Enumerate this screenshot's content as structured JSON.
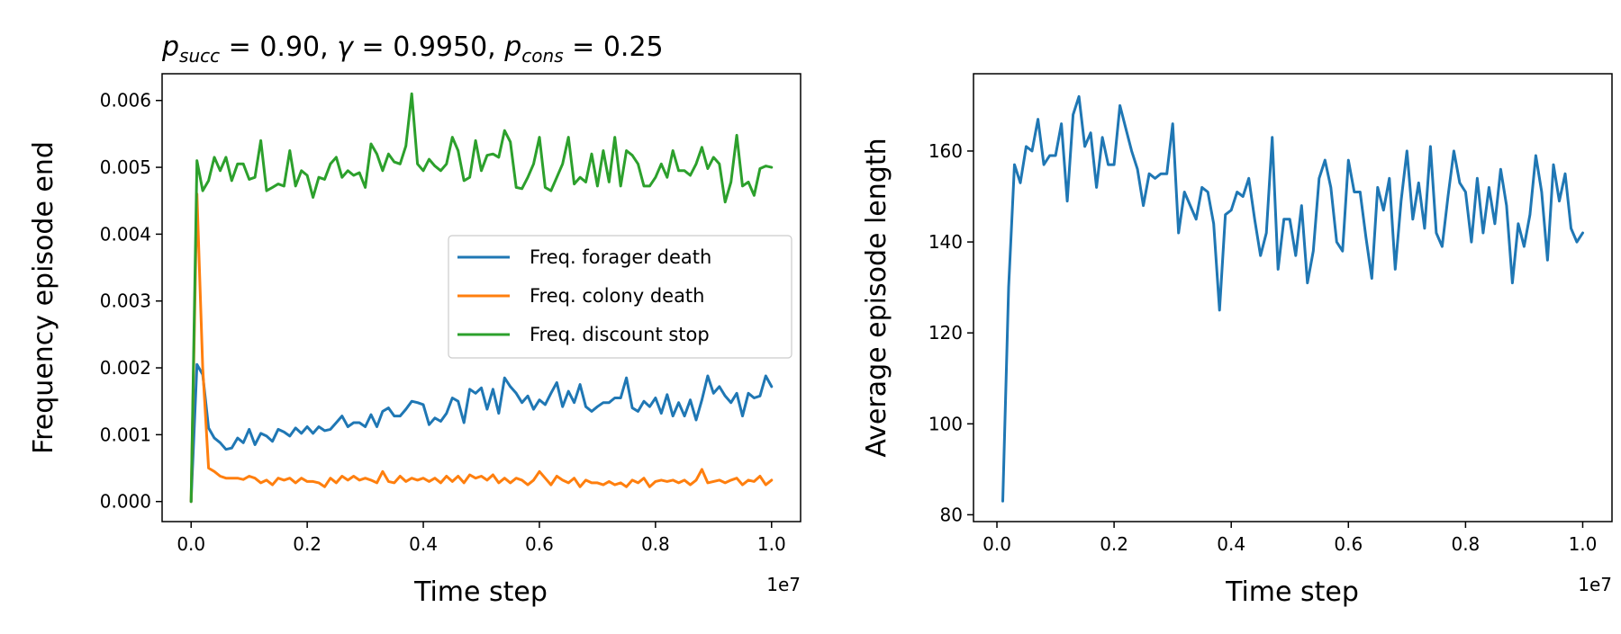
{
  "chart_data": [
    {
      "type": "line",
      "title": "p_succ = 0.90, γ = 0.9950, p_cons = 0.25",
      "title_parts": {
        "p": "p",
        "succ_sub": "succ",
        "eq1": " = 0.90, ",
        "gamma": "γ",
        "eq2": " = 0.9950, ",
        "p2": "p",
        "cons_sub": "cons",
        "eq3": " = 0.25"
      },
      "xlabel": "Time step",
      "ylabel": "Frequency episode end",
      "x_offset_label": "1e7",
      "xlim": [
        -0.05,
        1.05
      ],
      "ylim": [
        -0.0003,
        0.0064
      ],
      "xticks": [
        0.0,
        0.2,
        0.4,
        0.6,
        0.8,
        1.0
      ],
      "xtick_labels": [
        "0.0",
        "0.2",
        "0.4",
        "0.6",
        "0.8",
        "1.0"
      ],
      "yticks": [
        0.0,
        0.001,
        0.002,
        0.003,
        0.004,
        0.005,
        0.006
      ],
      "ytick_labels": [
        "0.000",
        "0.001",
        "0.002",
        "0.003",
        "0.004",
        "0.005",
        "0.006"
      ],
      "legend_placement": "center-right",
      "grid": false,
      "series": [
        {
          "name": "Freq. forager death",
          "color": "#1f77b4",
          "x": [
            0.0,
            0.01,
            0.02,
            0.03,
            0.04,
            0.05,
            0.06,
            0.07,
            0.08,
            0.09,
            0.1,
            0.11,
            0.12,
            0.13,
            0.14,
            0.15,
            0.16,
            0.17,
            0.18,
            0.19,
            0.2,
            0.21,
            0.22,
            0.23,
            0.24,
            0.25,
            0.26,
            0.27,
            0.28,
            0.29,
            0.3,
            0.31,
            0.32,
            0.33,
            0.34,
            0.35,
            0.36,
            0.37,
            0.38,
            0.39,
            0.4,
            0.41,
            0.42,
            0.43,
            0.44,
            0.45,
            0.46,
            0.47,
            0.48,
            0.49,
            0.5,
            0.51,
            0.52,
            0.53,
            0.54,
            0.55,
            0.56,
            0.57,
            0.58,
            0.59,
            0.6,
            0.61,
            0.62,
            0.63,
            0.64,
            0.65,
            0.66,
            0.67,
            0.68,
            0.69,
            0.7,
            0.71,
            0.72,
            0.73,
            0.74,
            0.75,
            0.76,
            0.77,
            0.78,
            0.79,
            0.8,
            0.81,
            0.82,
            0.83,
            0.84,
            0.85,
            0.86,
            0.87,
            0.88,
            0.89,
            0.9,
            0.91,
            0.92,
            0.93,
            0.94,
            0.95,
            0.96,
            0.97,
            0.98,
            0.99,
            1.0
          ],
          "values": [
            0.0,
            0.00205,
            0.0019,
            0.0011,
            0.00095,
            0.00088,
            0.00078,
            0.0008,
            0.00095,
            0.00088,
            0.00108,
            0.00085,
            0.00102,
            0.00098,
            0.0009,
            0.00108,
            0.00104,
            0.00098,
            0.0011,
            0.00102,
            0.00112,
            0.00102,
            0.00112,
            0.00106,
            0.00108,
            0.00118,
            0.00128,
            0.00112,
            0.00118,
            0.00118,
            0.00112,
            0.0013,
            0.00112,
            0.00135,
            0.0014,
            0.00128,
            0.00128,
            0.00138,
            0.0015,
            0.00148,
            0.00145,
            0.00115,
            0.00125,
            0.0012,
            0.00132,
            0.00155,
            0.0015,
            0.00118,
            0.00168,
            0.00162,
            0.0017,
            0.00138,
            0.00168,
            0.00132,
            0.00185,
            0.00172,
            0.00162,
            0.00148,
            0.00158,
            0.00138,
            0.00152,
            0.00145,
            0.00162,
            0.00178,
            0.00142,
            0.00165,
            0.00148,
            0.00175,
            0.00142,
            0.00135,
            0.00142,
            0.00148,
            0.00148,
            0.00155,
            0.00155,
            0.00185,
            0.0014,
            0.00135,
            0.0015,
            0.00142,
            0.00155,
            0.00132,
            0.0016,
            0.00128,
            0.00148,
            0.00128,
            0.00152,
            0.00122,
            0.00152,
            0.00188,
            0.00162,
            0.00172,
            0.00158,
            0.00148,
            0.00162,
            0.00128,
            0.00162,
            0.00155,
            0.00158,
            0.00188,
            0.00172
          ]
        },
        {
          "name": "Freq. colony death",
          "color": "#ff7f0e",
          "x": [
            0.0,
            0.01,
            0.02,
            0.03,
            0.04,
            0.05,
            0.06,
            0.07,
            0.08,
            0.09,
            0.1,
            0.11,
            0.12,
            0.13,
            0.14,
            0.15,
            0.16,
            0.17,
            0.18,
            0.19,
            0.2,
            0.21,
            0.22,
            0.23,
            0.24,
            0.25,
            0.26,
            0.27,
            0.28,
            0.29,
            0.3,
            0.31,
            0.32,
            0.33,
            0.34,
            0.35,
            0.36,
            0.37,
            0.38,
            0.39,
            0.4,
            0.41,
            0.42,
            0.43,
            0.44,
            0.45,
            0.46,
            0.47,
            0.48,
            0.49,
            0.5,
            0.51,
            0.52,
            0.53,
            0.54,
            0.55,
            0.56,
            0.57,
            0.58,
            0.59,
            0.6,
            0.61,
            0.62,
            0.63,
            0.64,
            0.65,
            0.66,
            0.67,
            0.68,
            0.69,
            0.7,
            0.71,
            0.72,
            0.73,
            0.74,
            0.75,
            0.76,
            0.77,
            0.78,
            0.79,
            0.8,
            0.81,
            0.82,
            0.83,
            0.84,
            0.85,
            0.86,
            0.87,
            0.88,
            0.89,
            0.9,
            0.91,
            0.92,
            0.93,
            0.94,
            0.95,
            0.96,
            0.97,
            0.98,
            0.99,
            1.0
          ],
          "values": [
            0.0,
            0.0046,
            0.002,
            0.0005,
            0.00045,
            0.00038,
            0.00035,
            0.00035,
            0.00035,
            0.00033,
            0.00038,
            0.00035,
            0.00028,
            0.00032,
            0.00025,
            0.00035,
            0.00032,
            0.00035,
            0.00028,
            0.00035,
            0.0003,
            0.0003,
            0.00028,
            0.00022,
            0.00035,
            0.00028,
            0.00038,
            0.00032,
            0.00038,
            0.00032,
            0.00035,
            0.00032,
            0.00028,
            0.00045,
            0.0003,
            0.00028,
            0.00038,
            0.0003,
            0.00035,
            0.00032,
            0.00035,
            0.0003,
            0.00035,
            0.00028,
            0.00038,
            0.0003,
            0.00038,
            0.00028,
            0.0004,
            0.00035,
            0.00038,
            0.00032,
            0.0004,
            0.00028,
            0.00035,
            0.00028,
            0.00035,
            0.00032,
            0.00025,
            0.00032,
            0.00045,
            0.00035,
            0.00025,
            0.00038,
            0.00032,
            0.00028,
            0.00035,
            0.00022,
            0.00032,
            0.00028,
            0.00028,
            0.00025,
            0.0003,
            0.00025,
            0.00028,
            0.00022,
            0.00032,
            0.00028,
            0.00035,
            0.00022,
            0.0003,
            0.00032,
            0.0003,
            0.00032,
            0.00028,
            0.00032,
            0.00025,
            0.00032,
            0.00048,
            0.00028,
            0.0003,
            0.00032,
            0.00028,
            0.00032,
            0.00035,
            0.00025,
            0.00032,
            0.0003,
            0.00038,
            0.00025,
            0.00032
          ]
        },
        {
          "name": "Freq. discount stop",
          "color": "#2ca02c",
          "x": [
            0.0,
            0.01,
            0.02,
            0.03,
            0.04,
            0.05,
            0.06,
            0.07,
            0.08,
            0.09,
            0.1,
            0.11,
            0.12,
            0.13,
            0.14,
            0.15,
            0.16,
            0.17,
            0.18,
            0.19,
            0.2,
            0.21,
            0.22,
            0.23,
            0.24,
            0.25,
            0.26,
            0.27,
            0.28,
            0.29,
            0.3,
            0.31,
            0.32,
            0.33,
            0.34,
            0.35,
            0.36,
            0.37,
            0.38,
            0.39,
            0.4,
            0.41,
            0.42,
            0.43,
            0.44,
            0.45,
            0.46,
            0.47,
            0.48,
            0.49,
            0.5,
            0.51,
            0.52,
            0.53,
            0.54,
            0.55,
            0.56,
            0.57,
            0.58,
            0.59,
            0.6,
            0.61,
            0.62,
            0.63,
            0.64,
            0.65,
            0.66,
            0.67,
            0.68,
            0.69,
            0.7,
            0.71,
            0.72,
            0.73,
            0.74,
            0.75,
            0.76,
            0.77,
            0.78,
            0.79,
            0.8,
            0.81,
            0.82,
            0.83,
            0.84,
            0.85,
            0.86,
            0.87,
            0.88,
            0.89,
            0.9,
            0.91,
            0.92,
            0.93,
            0.94,
            0.95,
            0.96,
            0.97,
            0.98,
            0.99,
            1.0
          ],
          "values": [
            0.0,
            0.0051,
            0.00465,
            0.0048,
            0.00515,
            0.00495,
            0.00515,
            0.0048,
            0.00505,
            0.00505,
            0.00482,
            0.00485,
            0.0054,
            0.00465,
            0.0047,
            0.00475,
            0.00472,
            0.00525,
            0.00472,
            0.00495,
            0.00488,
            0.00455,
            0.00485,
            0.00482,
            0.00505,
            0.00515,
            0.00485,
            0.00495,
            0.00488,
            0.00492,
            0.0047,
            0.00535,
            0.0052,
            0.00495,
            0.0052,
            0.00508,
            0.00505,
            0.00532,
            0.0061,
            0.00505,
            0.00495,
            0.00512,
            0.00502,
            0.00495,
            0.00505,
            0.00545,
            0.00525,
            0.0048,
            0.00485,
            0.0054,
            0.00495,
            0.00518,
            0.0052,
            0.00515,
            0.00555,
            0.00538,
            0.0047,
            0.00468,
            0.00485,
            0.00505,
            0.00545,
            0.0047,
            0.00465,
            0.00485,
            0.00505,
            0.00545,
            0.00475,
            0.00485,
            0.00478,
            0.0052,
            0.00472,
            0.00525,
            0.00478,
            0.00545,
            0.00472,
            0.00525,
            0.00518,
            0.00505,
            0.00472,
            0.00472,
            0.00485,
            0.00505,
            0.00485,
            0.00525,
            0.00495,
            0.00495,
            0.00488,
            0.00505,
            0.0053,
            0.00498,
            0.00515,
            0.00505,
            0.00448,
            0.00478,
            0.00548,
            0.00472,
            0.00478,
            0.00458,
            0.00498,
            0.00502,
            0.005
          ]
        }
      ]
    },
    {
      "type": "line",
      "title": "",
      "xlabel": "Time step",
      "ylabel": "Average episode length",
      "x_offset_label": "1e7",
      "xlim": [
        -0.04,
        1.05
      ],
      "ylim": [
        78.5,
        177
      ],
      "xticks": [
        0.0,
        0.2,
        0.4,
        0.6,
        0.8,
        1.0
      ],
      "xtick_labels": [
        "0.0",
        "0.2",
        "0.4",
        "0.6",
        "0.8",
        "1.0"
      ],
      "yticks": [
        80,
        100,
        120,
        140,
        160
      ],
      "ytick_labels": [
        "80",
        "100",
        "120",
        "140",
        "160"
      ],
      "grid": false,
      "series": [
        {
          "color": "#1f77b4",
          "x": [
            0.01,
            0.02,
            0.03,
            0.04,
            0.05,
            0.06,
            0.07,
            0.08,
            0.09,
            0.1,
            0.11,
            0.12,
            0.13,
            0.14,
            0.15,
            0.16,
            0.17,
            0.18,
            0.19,
            0.2,
            0.21,
            0.22,
            0.23,
            0.24,
            0.25,
            0.26,
            0.27,
            0.28,
            0.29,
            0.3,
            0.31,
            0.32,
            0.33,
            0.34,
            0.35,
            0.36,
            0.37,
            0.38,
            0.39,
            0.4,
            0.41,
            0.42,
            0.43,
            0.44,
            0.45,
            0.46,
            0.47,
            0.48,
            0.49,
            0.5,
            0.51,
            0.52,
            0.53,
            0.54,
            0.55,
            0.56,
            0.57,
            0.58,
            0.59,
            0.6,
            0.61,
            0.62,
            0.63,
            0.64,
            0.65,
            0.66,
            0.67,
            0.68,
            0.69,
            0.7,
            0.71,
            0.72,
            0.73,
            0.74,
            0.75,
            0.76,
            0.77,
            0.78,
            0.79,
            0.8,
            0.81,
            0.82,
            0.83,
            0.84,
            0.85,
            0.86,
            0.87,
            0.88,
            0.89,
            0.9,
            0.91,
            0.92,
            0.93,
            0.94,
            0.95,
            0.96,
            0.97,
            0.98,
            0.99,
            1.0
          ],
          "values": [
            83,
            130,
            157,
            153,
            161,
            160,
            167,
            157,
            159,
            159,
            166,
            149,
            168,
            172,
            161,
            164,
            152,
            163,
            157,
            157,
            170,
            165,
            160,
            156,
            148,
            155,
            154,
            155,
            155,
            166,
            142,
            151,
            148,
            145,
            152,
            151,
            144,
            125,
            146,
            147,
            151,
            150,
            154,
            145,
            137,
            142,
            163,
            134,
            145,
            145,
            137,
            148,
            131,
            138,
            154,
            158,
            152,
            140,
            138,
            158,
            151,
            151,
            141,
            132,
            152,
            147,
            154,
            134,
            149,
            160,
            145,
            153,
            143,
            161,
            142,
            139,
            150,
            160,
            153,
            151,
            140,
            154,
            142,
            152,
            144,
            156,
            148,
            131,
            144,
            139,
            146,
            159,
            151,
            136,
            157,
            149,
            155,
            143,
            140,
            142
          ]
        }
      ]
    }
  ]
}
